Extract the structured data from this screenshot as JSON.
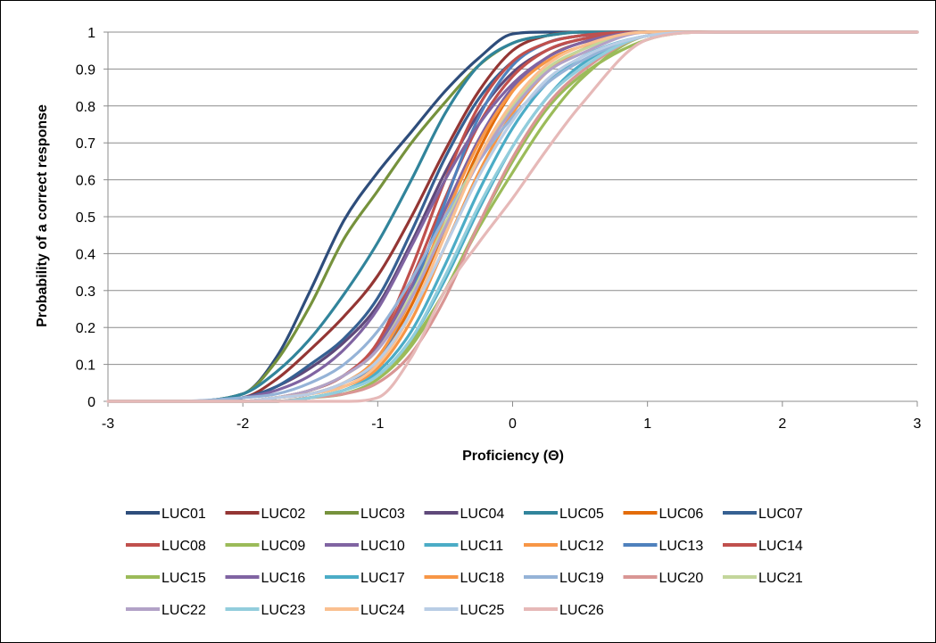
{
  "chart_data": {
    "type": "line",
    "title": "",
    "xlabel": "Proficiency (Θ)",
    "ylabel": "Probability of a correct response",
    "xlim": [
      -3,
      3
    ],
    "ylim": [
      0,
      1
    ],
    "x_ticks": [
      "-3",
      "-2",
      "-1",
      "0",
      "1",
      "2",
      "3"
    ],
    "y_ticks": [
      "0",
      "0.1",
      "0.2",
      "0.3",
      "0.4",
      "0.5",
      "0.6",
      "0.7",
      "0.8",
      "0.9",
      "1"
    ],
    "grid": "horizontal",
    "legend_position": "bottom",
    "series": [
      {
        "name": "LUC01",
        "color": "#2E4D7B",
        "x": [
          -3,
          -2.5,
          -2,
          -1.75,
          -1.5,
          -1.25,
          -1,
          -0.75,
          -0.5,
          -0.25,
          0,
          0.25,
          0.5,
          1,
          1.5,
          2,
          3
        ],
        "y": [
          0,
          0,
          0.02,
          0.12,
          0.3,
          0.49,
          0.62,
          0.73,
          0.84,
          0.93,
          0.995,
          1,
          1,
          1,
          1,
          1,
          1
        ]
      },
      {
        "name": "LUC02",
        "color": "#943634",
        "x": [
          -3,
          -2.5,
          -2,
          -1.75,
          -1.5,
          -1.25,
          -1,
          -0.75,
          -0.5,
          -0.25,
          0,
          0.25,
          0.5,
          1,
          1.5,
          2,
          3
        ],
        "y": [
          0,
          0,
          0.01,
          0.06,
          0.14,
          0.23,
          0.34,
          0.5,
          0.68,
          0.84,
          0.95,
          0.99,
          1,
          1,
          1,
          1,
          1
        ]
      },
      {
        "name": "LUC03",
        "color": "#76923C",
        "x": [
          -3,
          -2.5,
          -2,
          -1.75,
          -1.5,
          -1.25,
          -1,
          -0.75,
          -0.5,
          -0.25,
          0,
          0.25,
          0.5,
          1,
          1.5,
          2,
          3
        ],
        "y": [
          0,
          0,
          0.02,
          0.11,
          0.26,
          0.44,
          0.57,
          0.7,
          0.81,
          0.91,
          0.97,
          0.99,
          1,
          1,
          1,
          1,
          1
        ]
      },
      {
        "name": "LUC04",
        "color": "#5F497A",
        "x": [
          -3,
          -2.5,
          -2,
          -1.75,
          -1.5,
          -1.25,
          -1,
          -0.75,
          -0.5,
          -0.25,
          0,
          0.25,
          0.5,
          1,
          1.5,
          2,
          3
        ],
        "y": [
          0,
          0,
          0.01,
          0.04,
          0.09,
          0.16,
          0.26,
          0.43,
          0.62,
          0.78,
          0.89,
          0.95,
          0.98,
          1,
          1,
          1,
          1
        ]
      },
      {
        "name": "LUC05",
        "color": "#31849B",
        "x": [
          -3,
          -2.5,
          -2,
          -1.75,
          -1.5,
          -1.25,
          -1,
          -0.75,
          -0.5,
          -0.25,
          0,
          0.25,
          0.5,
          1,
          1.5,
          2,
          3
        ],
        "y": [
          0,
          0,
          0.02,
          0.08,
          0.17,
          0.29,
          0.43,
          0.6,
          0.78,
          0.91,
          0.97,
          0.99,
          1,
          1,
          1,
          1,
          1
        ]
      },
      {
        "name": "LUC06",
        "color": "#E36C09",
        "x": [
          -3,
          -2.5,
          -2,
          -1.75,
          -1.5,
          -1.25,
          -1,
          -0.75,
          -0.5,
          -0.25,
          0,
          0.25,
          0.5,
          1,
          1.5,
          2,
          3
        ],
        "y": [
          0,
          0,
          0,
          0.01,
          0.02,
          0.05,
          0.11,
          0.26,
          0.47,
          0.68,
          0.84,
          0.93,
          0.97,
          1,
          1,
          1,
          1
        ]
      },
      {
        "name": "LUC07",
        "color": "#366092",
        "x": [
          -3,
          -2.5,
          -2,
          -1.75,
          -1.5,
          -1.25,
          -1,
          -0.75,
          -0.5,
          -0.25,
          0,
          0.25,
          0.5,
          1,
          1.5,
          2,
          3
        ],
        "y": [
          0,
          0,
          0.01,
          0.04,
          0.1,
          0.17,
          0.28,
          0.46,
          0.66,
          0.82,
          0.92,
          0.97,
          0.99,
          1,
          1,
          1,
          1
        ]
      },
      {
        "name": "LUC08",
        "color": "#C0504D",
        "x": [
          -3,
          -2.5,
          -2,
          -1.75,
          -1.5,
          -1.25,
          -1,
          -0.75,
          -0.5,
          -0.25,
          0,
          0.25,
          0.5,
          1,
          1.5,
          2,
          3
        ],
        "y": [
          0,
          0,
          0,
          0.01,
          0.03,
          0.07,
          0.15,
          0.33,
          0.55,
          0.75,
          0.88,
          0.95,
          0.98,
          1,
          1,
          1,
          1
        ]
      },
      {
        "name": "LUC09",
        "color": "#9BBB59",
        "x": [
          -3,
          -2.5,
          -2,
          -1.75,
          -1.5,
          -1.25,
          -1,
          -0.75,
          -0.5,
          -0.25,
          0,
          0.25,
          0.5,
          1,
          1.5,
          2,
          3
        ],
        "y": [
          0,
          0,
          0,
          0,
          0.01,
          0.03,
          0.07,
          0.16,
          0.3,
          0.47,
          0.62,
          0.76,
          0.87,
          0.99,
          1,
          1,
          1
        ]
      },
      {
        "name": "LUC10",
        "color": "#8064A2",
        "x": [
          -3,
          -2.5,
          -2,
          -1.75,
          -1.5,
          -1.25,
          -1,
          -0.75,
          -0.5,
          -0.25,
          0,
          0.25,
          0.5,
          1,
          1.5,
          2,
          3
        ],
        "y": [
          0,
          0,
          0,
          0.01,
          0.03,
          0.07,
          0.15,
          0.31,
          0.52,
          0.71,
          0.85,
          0.93,
          0.97,
          1,
          1,
          1,
          1
        ]
      },
      {
        "name": "LUC11",
        "color": "#4BACC6",
        "x": [
          -3,
          -2.5,
          -2,
          -1.75,
          -1.5,
          -1.25,
          -1,
          -0.75,
          -0.5,
          -0.25,
          0,
          0.25,
          0.5,
          1,
          1.5,
          2,
          3
        ],
        "y": [
          0,
          0,
          0,
          0,
          0.01,
          0.03,
          0.08,
          0.19,
          0.37,
          0.57,
          0.74,
          0.86,
          0.93,
          0.99,
          1,
          1,
          1
        ]
      },
      {
        "name": "LUC12",
        "color": "#F79646",
        "x": [
          -3,
          -2.5,
          -2,
          -1.75,
          -1.5,
          -1.25,
          -1,
          -0.75,
          -0.5,
          -0.25,
          0,
          0.25,
          0.5,
          1,
          1.5,
          2,
          3
        ],
        "y": [
          0,
          0,
          0,
          0.01,
          0.02,
          0.04,
          0.09,
          0.22,
          0.42,
          0.62,
          0.78,
          0.89,
          0.95,
          1,
          1,
          1,
          1
        ]
      },
      {
        "name": "LUC13",
        "color": "#4F81BD",
        "x": [
          -3,
          -2.5,
          -2,
          -1.75,
          -1.5,
          -1.25,
          -1,
          -0.75,
          -0.5,
          -0.25,
          0,
          0.25,
          0.5,
          1,
          1.5,
          2,
          3
        ],
        "y": [
          0,
          0,
          0,
          0.01,
          0.02,
          0.05,
          0.11,
          0.29,
          0.54,
          0.77,
          0.91,
          0.97,
          0.99,
          1,
          1,
          1,
          1
        ]
      },
      {
        "name": "LUC14",
        "color": "#C0504D",
        "x": [
          -3,
          -2.5,
          -2,
          -1.75,
          -1.5,
          -1.25,
          -1,
          -0.75,
          -0.5,
          -0.25,
          0,
          0.25,
          0.5,
          1,
          1.5,
          2,
          3
        ],
        "y": [
          0,
          0,
          0,
          0.01,
          0.03,
          0.07,
          0.16,
          0.36,
          0.6,
          0.8,
          0.92,
          0.97,
          0.99,
          1,
          1,
          1,
          1
        ]
      },
      {
        "name": "LUC15",
        "color": "#9BBB59",
        "x": [
          -3,
          -2.5,
          -2,
          -1.75,
          -1.5,
          -1.25,
          -1,
          -0.75,
          -0.5,
          -0.25,
          0,
          0.25,
          0.5,
          1,
          1.5,
          2,
          3
        ],
        "y": [
          0,
          0,
          0,
          0,
          0.01,
          0.02,
          0.06,
          0.15,
          0.3,
          0.48,
          0.65,
          0.79,
          0.88,
          0.98,
          1,
          1,
          1
        ]
      },
      {
        "name": "LUC16",
        "color": "#8064A2",
        "x": [
          -3,
          -2.5,
          -2,
          -1.75,
          -1.5,
          -1.25,
          -1,
          -0.75,
          -0.5,
          -0.25,
          0,
          0.25,
          0.5,
          1,
          1.5,
          2,
          3
        ],
        "y": [
          0,
          0,
          0.01,
          0.03,
          0.07,
          0.14,
          0.25,
          0.42,
          0.6,
          0.75,
          0.86,
          0.93,
          0.97,
          1,
          1,
          1,
          1
        ]
      },
      {
        "name": "LUC17",
        "color": "#4BACC6",
        "x": [
          -3,
          -2.5,
          -2,
          -1.75,
          -1.5,
          -1.25,
          -1,
          -0.75,
          -0.5,
          -0.25,
          0,
          0.25,
          0.5,
          1,
          1.5,
          2,
          3
        ],
        "y": [
          0,
          0,
          0,
          0,
          0.01,
          0.03,
          0.07,
          0.17,
          0.33,
          0.52,
          0.69,
          0.82,
          0.91,
          0.99,
          1,
          1,
          1
        ]
      },
      {
        "name": "LUC18",
        "color": "#F79646",
        "x": [
          -3,
          -2.5,
          -2,
          -1.75,
          -1.5,
          -1.25,
          -1,
          -0.75,
          -0.5,
          -0.25,
          0,
          0.25,
          0.5,
          1,
          1.5,
          2,
          3
        ],
        "y": [
          0,
          0,
          0,
          0.01,
          0.02,
          0.05,
          0.12,
          0.28,
          0.5,
          0.7,
          0.84,
          0.92,
          0.96,
          1,
          1,
          1,
          1
        ]
      },
      {
        "name": "LUC19",
        "color": "#95B3D7",
        "x": [
          -3,
          -2.5,
          -2,
          -1.75,
          -1.5,
          -1.25,
          -1,
          -0.75,
          -0.5,
          -0.25,
          0,
          0.25,
          0.5,
          1,
          1.5,
          2,
          3
        ],
        "y": [
          0,
          0,
          0.01,
          0.02,
          0.05,
          0.1,
          0.19,
          0.33,
          0.5,
          0.65,
          0.77,
          0.86,
          0.92,
          0.99,
          1,
          1,
          1
        ]
      },
      {
        "name": "LUC20",
        "color": "#D99694",
        "x": [
          -3,
          -2.5,
          -2,
          -1.75,
          -1.5,
          -1.25,
          -1,
          -0.75,
          -0.5,
          -0.25,
          0,
          0.25,
          0.5,
          1,
          1.5,
          2,
          3
        ],
        "y": [
          0,
          0,
          0,
          0,
          0.01,
          0.02,
          0.05,
          0.13,
          0.28,
          0.48,
          0.66,
          0.8,
          0.89,
          0.99,
          1,
          1,
          1
        ]
      },
      {
        "name": "LUC21",
        "color": "#C3D69B",
        "x": [
          -3,
          -2.5,
          -2,
          -1.75,
          -1.5,
          -1.25,
          -1,
          -0.75,
          -0.5,
          -0.25,
          0,
          0.25,
          0.5,
          1,
          1.5,
          2,
          3
        ],
        "y": [
          0,
          0,
          0,
          0.01,
          0.03,
          0.07,
          0.14,
          0.29,
          0.48,
          0.66,
          0.8,
          0.9,
          0.95,
          1,
          1,
          1,
          1
        ]
      },
      {
        "name": "LUC22",
        "color": "#B2A2C7",
        "x": [
          -3,
          -2.5,
          -2,
          -1.75,
          -1.5,
          -1.25,
          -1,
          -0.75,
          -0.5,
          -0.25,
          0,
          0.25,
          0.5,
          1,
          1.5,
          2,
          3
        ],
        "y": [
          0,
          0,
          0,
          0.01,
          0.03,
          0.07,
          0.14,
          0.28,
          0.47,
          0.65,
          0.79,
          0.89,
          0.94,
          1,
          1,
          1,
          1
        ]
      },
      {
        "name": "LUC23",
        "color": "#92CDDC",
        "x": [
          -3,
          -2.5,
          -2,
          -1.75,
          -1.5,
          -1.25,
          -1,
          -0.75,
          -0.5,
          -0.25,
          0,
          0.25,
          0.5,
          1,
          1.5,
          2,
          3
        ],
        "y": [
          0,
          0,
          0,
          0,
          0.01,
          0.03,
          0.07,
          0.17,
          0.34,
          0.53,
          0.69,
          0.82,
          0.9,
          0.99,
          1,
          1,
          1
        ]
      },
      {
        "name": "LUC24",
        "color": "#FAC090",
        "x": [
          -3,
          -2.5,
          -2,
          -1.75,
          -1.5,
          -1.25,
          -1,
          -0.75,
          -0.5,
          -0.25,
          0,
          0.25,
          0.5,
          1,
          1.5,
          2,
          3
        ],
        "y": [
          0,
          0,
          0,
          0.01,
          0.02,
          0.04,
          0.1,
          0.24,
          0.45,
          0.66,
          0.81,
          0.91,
          0.96,
          1,
          1,
          1,
          1
        ]
      },
      {
        "name": "LUC25",
        "color": "#B9CDE5",
        "x": [
          -3,
          -2.5,
          -2,
          -1.75,
          -1.5,
          -1.25,
          -1,
          -0.75,
          -0.5,
          -0.25,
          0,
          0.25,
          0.5,
          1,
          1.5,
          2,
          3
        ],
        "y": [
          0,
          0,
          0,
          0.01,
          0.02,
          0.05,
          0.11,
          0.24,
          0.42,
          0.61,
          0.76,
          0.87,
          0.93,
          0.99,
          1,
          1,
          1
        ]
      },
      {
        "name": "LUC26",
        "color": "#E6B9B8",
        "x": [
          -3,
          -2.5,
          -2,
          -1.75,
          -1.5,
          -1.25,
          -1,
          -0.75,
          -0.5,
          -0.25,
          0,
          0.25,
          0.5,
          1,
          1.5,
          2,
          3
        ],
        "y": [
          0,
          0,
          0,
          0,
          0,
          0,
          0.01,
          0.12,
          0.3,
          0.43,
          0.55,
          0.68,
          0.8,
          0.98,
          1,
          1,
          1
        ]
      }
    ]
  }
}
